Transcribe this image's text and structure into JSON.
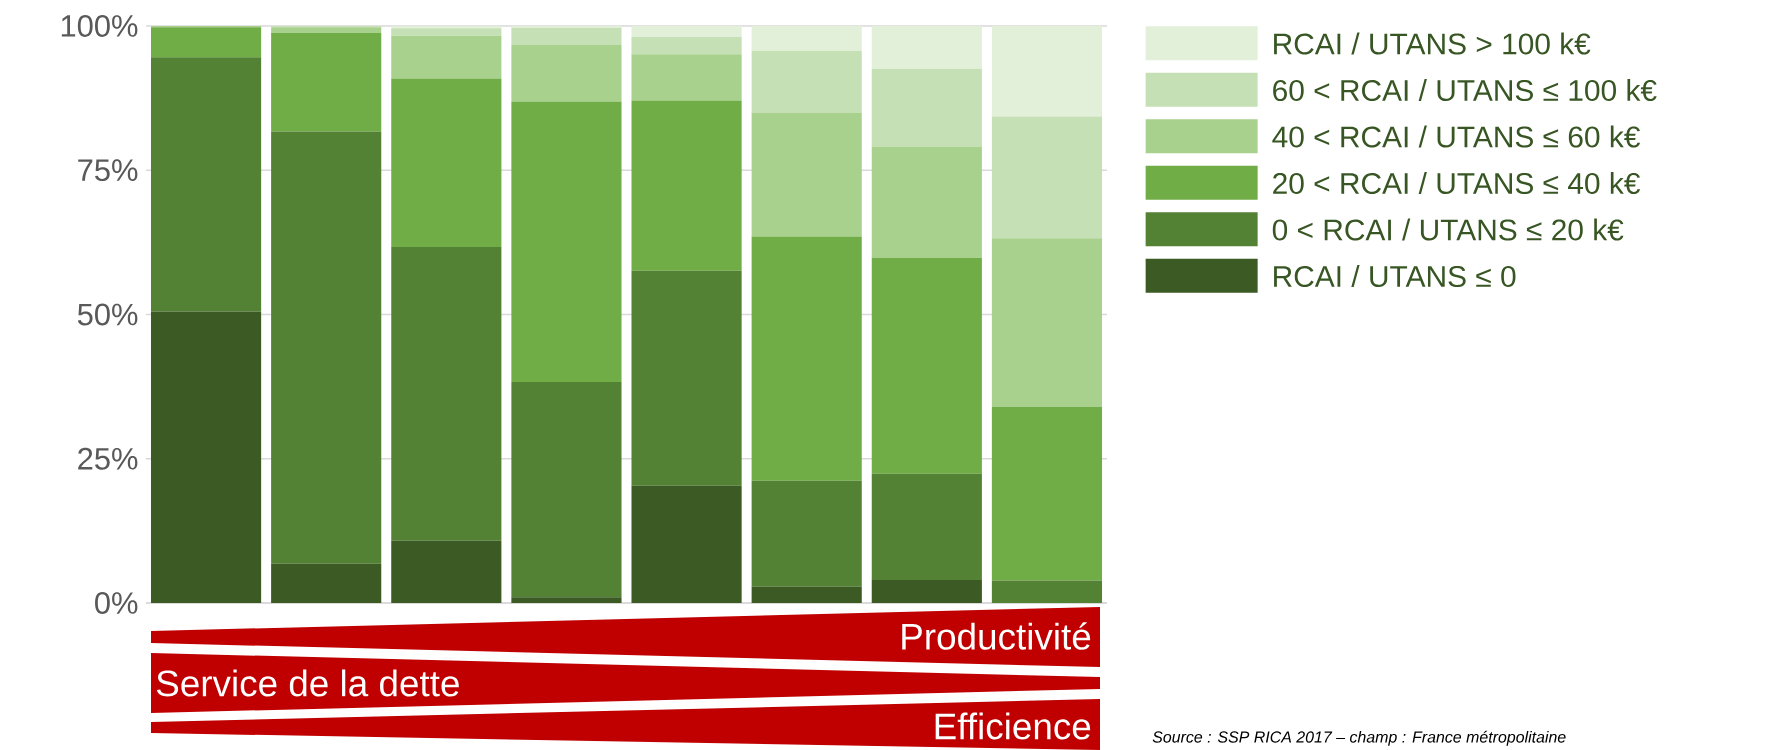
{
  "chart_data": {
    "type": "bar",
    "stacked": true,
    "categories": [
      null,
      null,
      null,
      null,
      null,
      null,
      null,
      null
    ],
    "series": [
      {
        "name": "RCAI / UTANS ≤ 0",
        "color": "#3b5a24",
        "values": [
          50.5,
          6.8,
          10.8,
          1.0,
          20.3,
          2.8,
          4.0,
          0
        ]
      },
      {
        "name": "0 < RCAI / UTANS ≤ 20 k€",
        "color": "#548235",
        "values": [
          44.1,
          74.9,
          50.9,
          37.3,
          37.3,
          18.4,
          18.4,
          3.9
        ]
      },
      {
        "name": "20 < RCAI / UTANS ≤ 40 k€",
        "color": "#70ad47",
        "values": [
          5.2,
          17.1,
          29.2,
          48.6,
          29.5,
          42.3,
          37.4,
          30.1
        ]
      },
      {
        "name": "40 < RCAI / UTANS ≤ 60 k€",
        "color": "#a9d18e",
        "values": [
          0.2,
          1.0,
          7.4,
          9.8,
          8.0,
          21.5,
          19.3,
          29.2
        ]
      },
      {
        "name": "60 < RCAI / UTANS ≤ 100 k€",
        "color": "#c5e0b4",
        "values": [
          0,
          0.2,
          1.3,
          3.0,
          3.0,
          10.7,
          13.5,
          21.1
        ]
      },
      {
        "name": "RCAI / UTANS > 100 k€",
        "color": "#e2f0d9",
        "values": [
          0,
          0,
          0.4,
          0.3,
          1.9,
          4.3,
          7.4,
          15.7
        ]
      }
    ],
    "ylim": [
      0,
      100
    ],
    "yticks": [
      {
        "value": 0,
        "label": "0%"
      },
      {
        "value": 25,
        "label": "25%"
      },
      {
        "value": 50,
        "label": "50%"
      },
      {
        "value": 75,
        "label": "75%"
      },
      {
        "value": 100,
        "label": "100%"
      }
    ],
    "grid": "y",
    "legend": "top right",
    "annotations": [
      "Productivité",
      "Service de la dette",
      "Efficience",
      "Source : SSP RICA 2017 – champ : France métropolitaine"
    ]
  }
}
